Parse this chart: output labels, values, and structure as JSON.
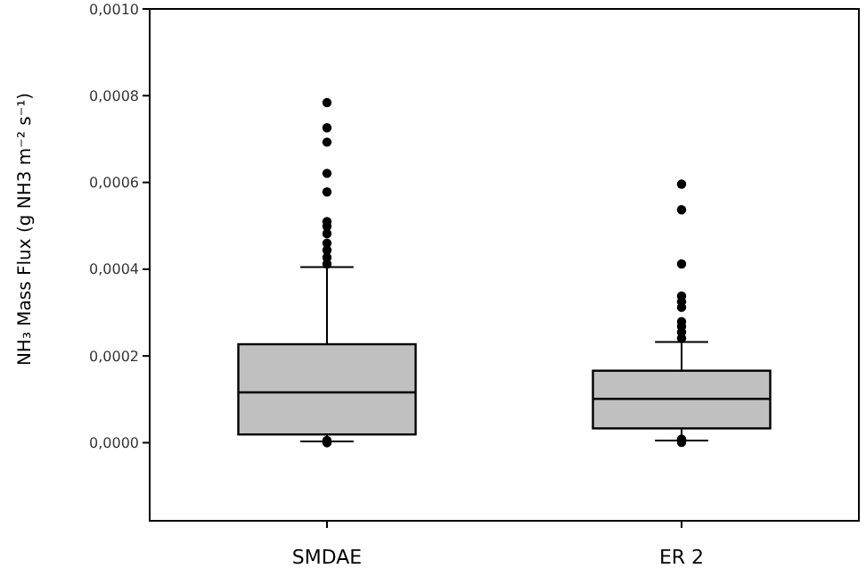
{
  "chart_data": {
    "type": "box",
    "ylabel": "NH₃ Mass Flux (g NH3 m⁻² s⁻¹)",
    "categories": [
      "SMDAE",
      "ER 2"
    ],
    "color": "#c0c0c0",
    "ylim": [
      -0.00018,
      0.001
    ],
    "yticks": [
      {
        "value": 0,
        "label": "0,0000"
      },
      {
        "value": 0.0002,
        "label": "0,0002"
      },
      {
        "value": 0.0004,
        "label": "0,0004"
      },
      {
        "value": 0.0006,
        "label": "0,0006"
      },
      {
        "value": 0.0008,
        "label": "0,0008"
      },
      {
        "value": 0.001,
        "label": "0,0010"
      }
    ],
    "grid": false,
    "boxes": [
      {
        "low": 3e-06,
        "q1": 1.9e-05,
        "median": 0.000116,
        "q3": 0.000227,
        "high": 0.000405,
        "outliers": [
          0.000784,
          0.000726,
          0.000693,
          0.000621,
          0.000578,
          0.00051,
          0.000499,
          0.000482,
          0.00046,
          0.000444,
          0.000427,
          0.000412,
          0.0,
          5e-06
        ]
      },
      {
        "low": 5e-06,
        "q1": 3.3e-05,
        "median": 0.000101,
        "q3": 0.000166,
        "high": 0.000232,
        "outliers": [
          0.000596,
          0.000537,
          0.000412,
          0.000338,
          0.000325,
          0.000312,
          0.000279,
          0.000268,
          0.000255,
          0.000241,
          8e-06,
          1e-06
        ]
      }
    ]
  }
}
